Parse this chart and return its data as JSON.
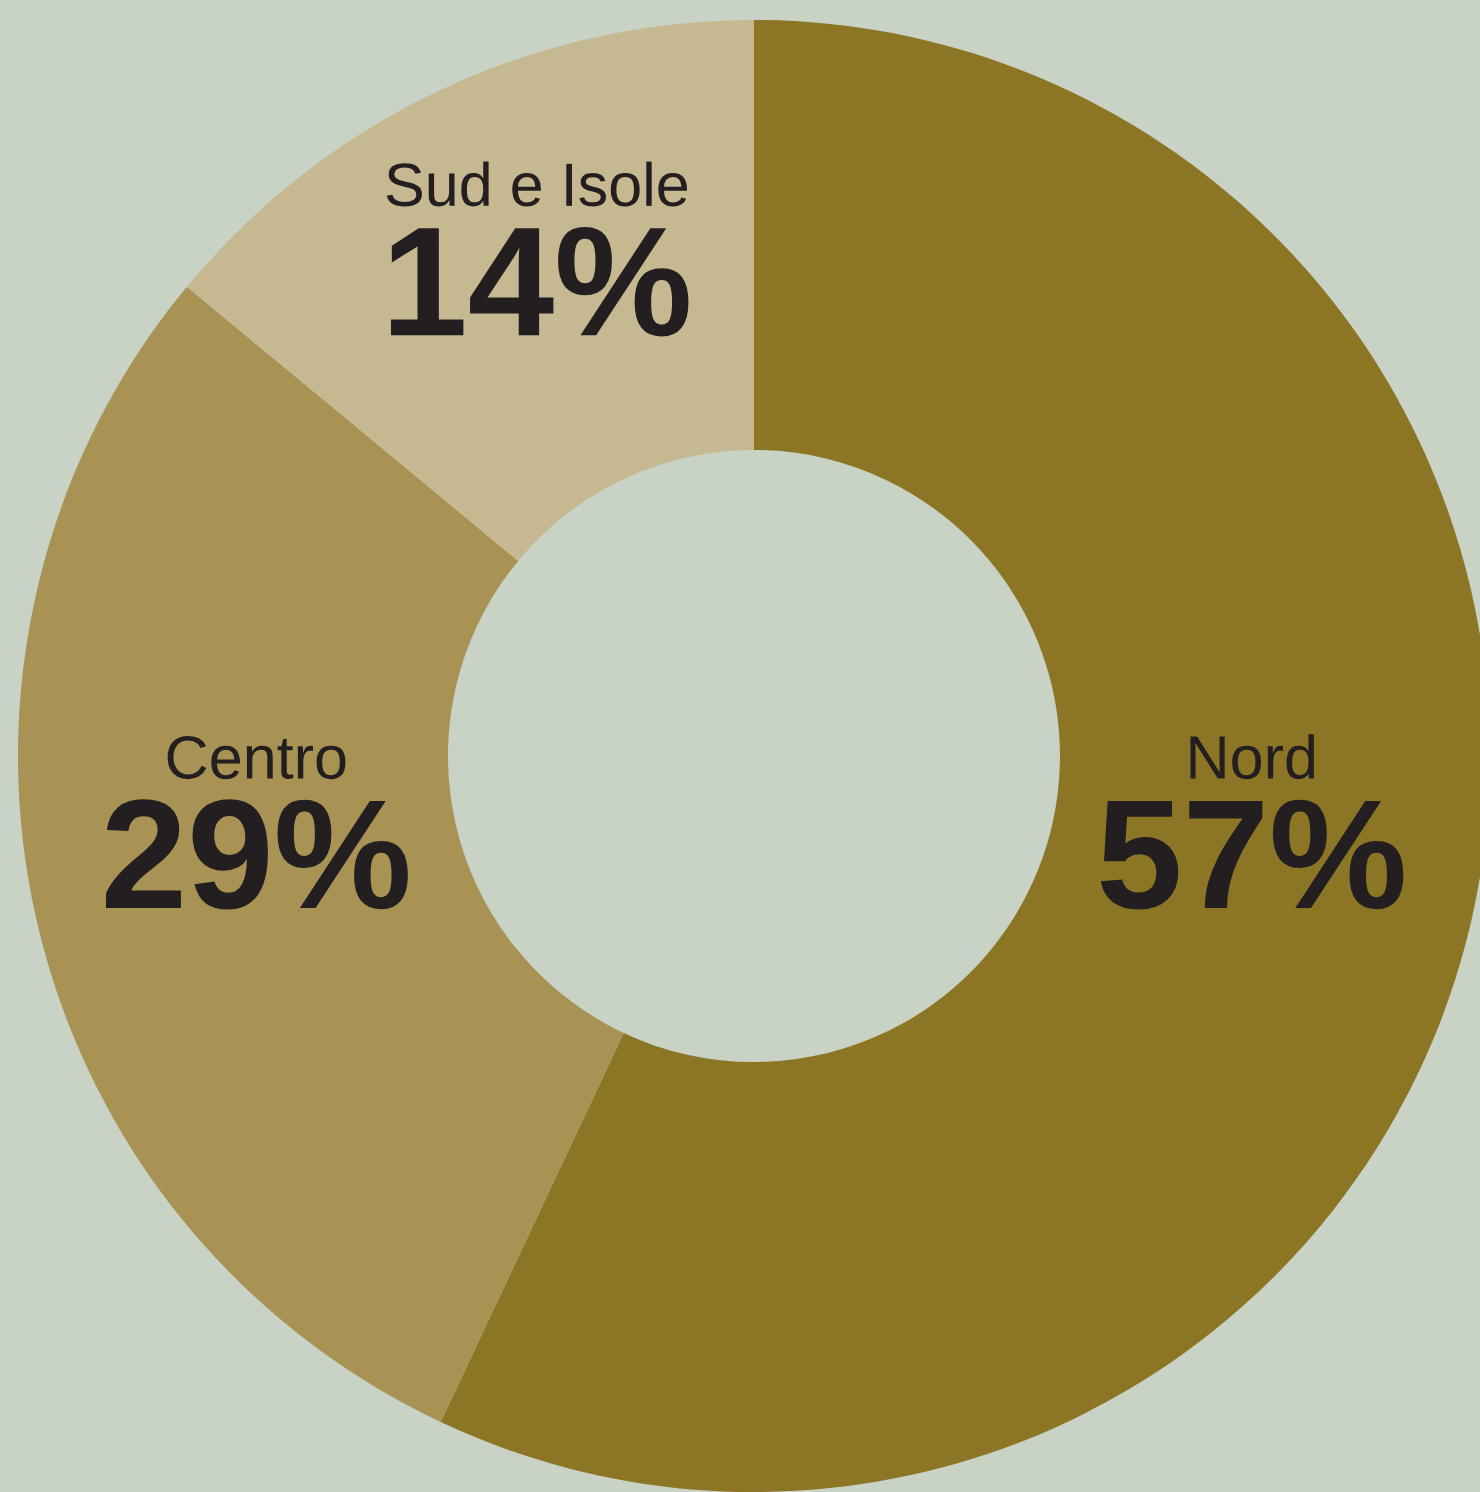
{
  "chart_data": {
    "type": "donut",
    "categories": [
      "Nord",
      "Centro",
      "Sud e Isole"
    ],
    "values": [
      57,
      29,
      14
    ],
    "colors": [
      "#8c7626",
      "#a89354",
      "#c6b891"
    ],
    "value_labels": [
      "57%",
      "29%",
      "14%"
    ]
  }
}
